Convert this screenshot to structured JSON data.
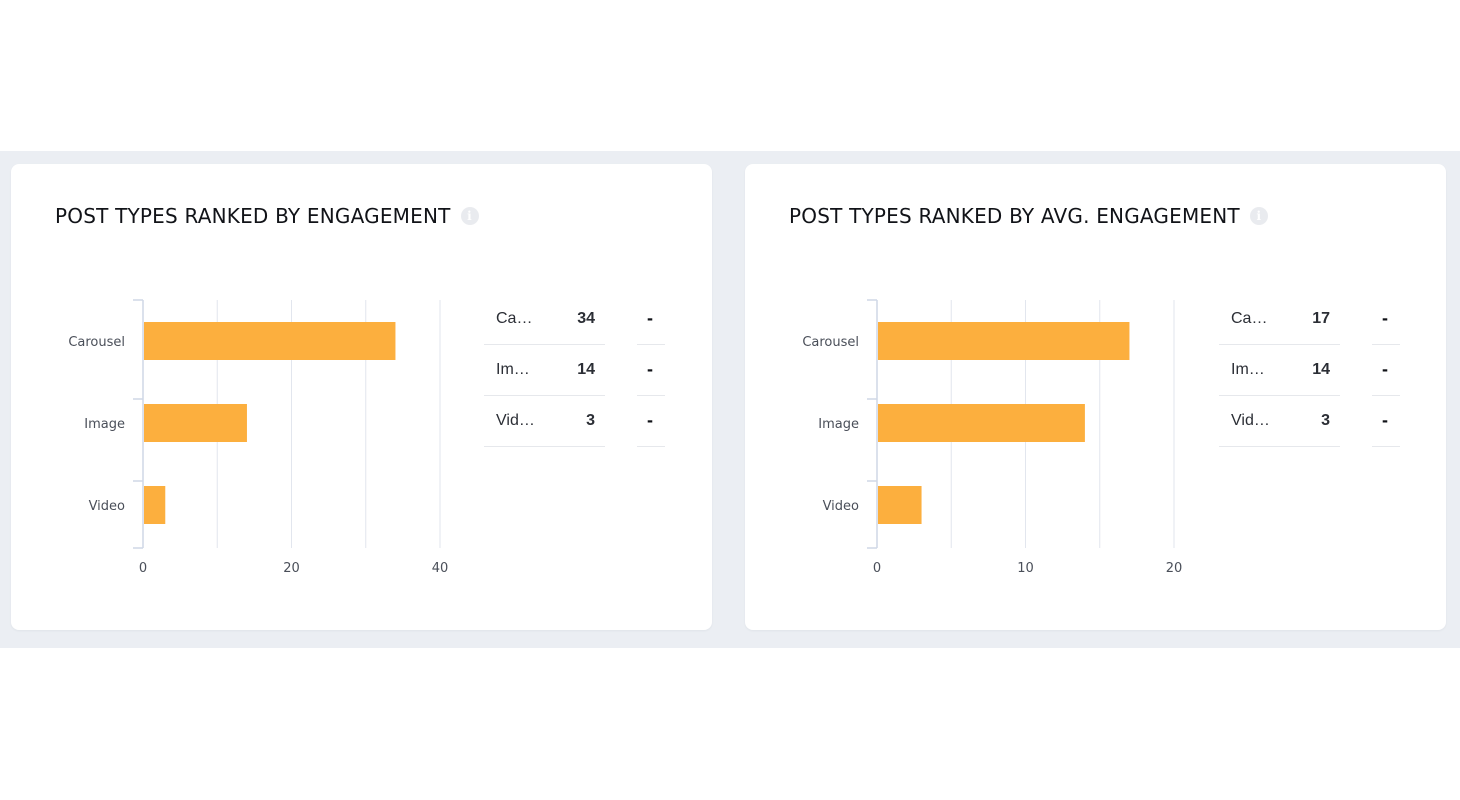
{
  "colors": {
    "bar": "#fcaf3e",
    "grid": "#e2e6ee",
    "axis": "#cfd7e6"
  },
  "icons": {
    "info": "info-circle-icon"
  },
  "info_glyph": "i",
  "chart_data": [
    {
      "type": "bar",
      "orientation": "horizontal",
      "title": "POST TYPES RANKED BY ENGAGEMENT",
      "categories": [
        "Carousel",
        "Image",
        "Video"
      ],
      "values": [
        34,
        14,
        3
      ],
      "xlim": [
        0,
        40
      ],
      "xticks": [
        0,
        20,
        40
      ],
      "xtick_labels": [
        "0",
        "20",
        "40"
      ],
      "grid": true,
      "legend": {
        "placement": "right",
        "rows": [
          {
            "name": "Ca…",
            "value": "34",
            "change": "-"
          },
          {
            "name": "Im…",
            "value": "14",
            "change": "-"
          },
          {
            "name": "Vid…",
            "value": "3",
            "change": "-"
          }
        ]
      }
    },
    {
      "type": "bar",
      "orientation": "horizontal",
      "title": "POST TYPES RANKED BY AVG. ENGAGEMENT",
      "categories": [
        "Carousel",
        "Image",
        "Video"
      ],
      "values": [
        17,
        14,
        3
      ],
      "xlim": [
        0,
        20
      ],
      "xticks": [
        0,
        10,
        20
      ],
      "xtick_labels": [
        "0",
        "10",
        "20"
      ],
      "grid": true,
      "legend": {
        "placement": "right",
        "rows": [
          {
            "name": "Ca…",
            "value": "17",
            "change": "-"
          },
          {
            "name": "Im…",
            "value": "14",
            "change": "-"
          },
          {
            "name": "Vid…",
            "value": "3",
            "change": "-"
          }
        ]
      }
    }
  ]
}
